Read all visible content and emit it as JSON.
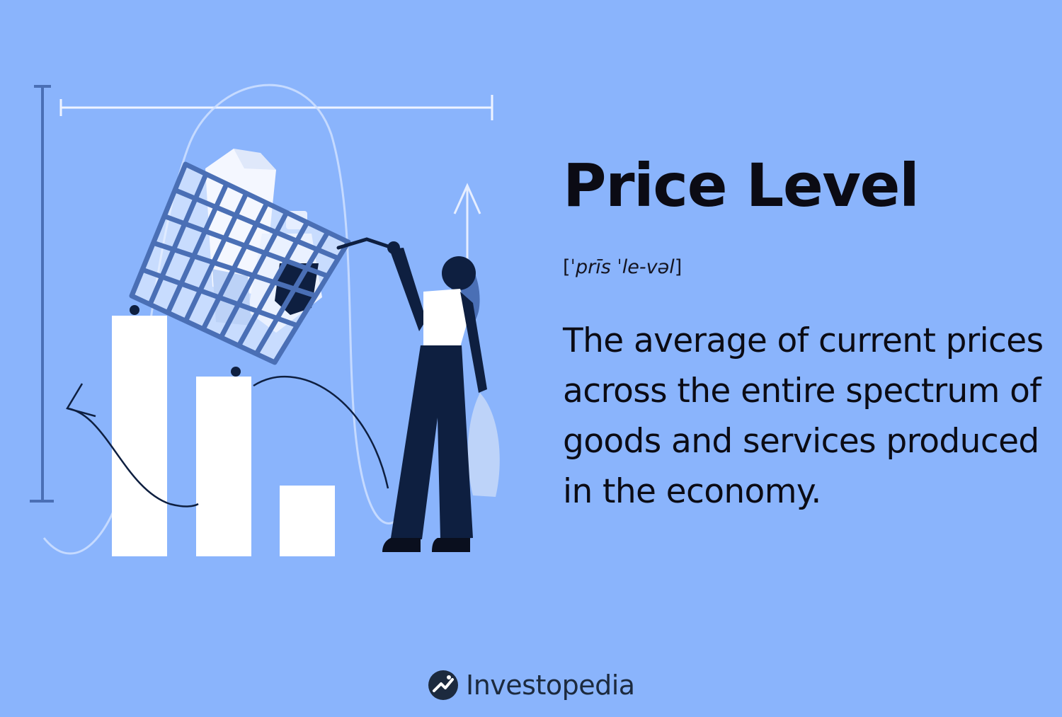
{
  "title": "Price Level",
  "pronunciation": {
    "open": "[",
    "text": "ˈprīs ˈle-vəl",
    "close": "]"
  },
  "definition": "The average of current prices across the entire spectrum of goods and services produced in the economy.",
  "brand": {
    "name": "Investopedia",
    "logo": "investopedia-logo-icon"
  },
  "illustration": {
    "description_icons": [
      "bar-chart-icon",
      "shopping-cart-icon",
      "woman-figure-icon",
      "up-arrow-icon",
      "curved-arrow-icon"
    ]
  },
  "colors": {
    "background": "#8ab4fc",
    "text": "#0b0b14",
    "navy": "#0e1f40",
    "cart": "#4a6fb5",
    "white": "#ffffff"
  }
}
